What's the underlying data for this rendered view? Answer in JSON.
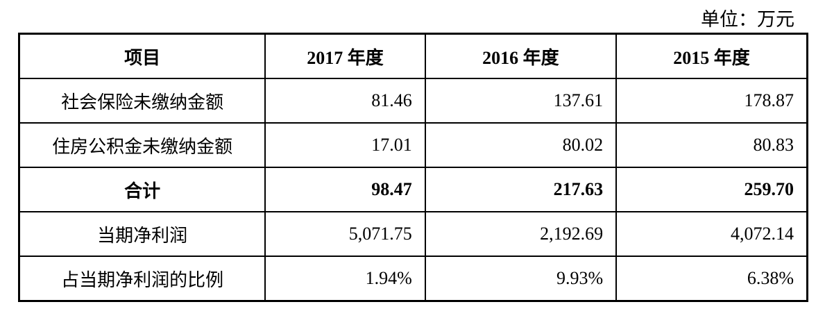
{
  "unit": "单位：万元",
  "headers": [
    "项目",
    "2017 年度",
    "2016 年度",
    "2015 年度"
  ],
  "rows": [
    {
      "label": "社会保险未缴纳金额",
      "values": [
        "81.46",
        "137.61",
        "178.87"
      ]
    },
    {
      "label": "住房公积金未缴纳金额",
      "values": [
        "17.01",
        "80.02",
        "80.83"
      ]
    },
    {
      "label": "合计",
      "values": [
        "98.47",
        "217.63",
        "259.70"
      ]
    },
    {
      "label": "当期净利润",
      "values": [
        "5,071.75",
        "2,192.69",
        "4,072.14"
      ]
    },
    {
      "label": "占当期净利润的比例",
      "values": [
        "1.94%",
        "9.93%",
        "6.38%"
      ]
    }
  ]
}
